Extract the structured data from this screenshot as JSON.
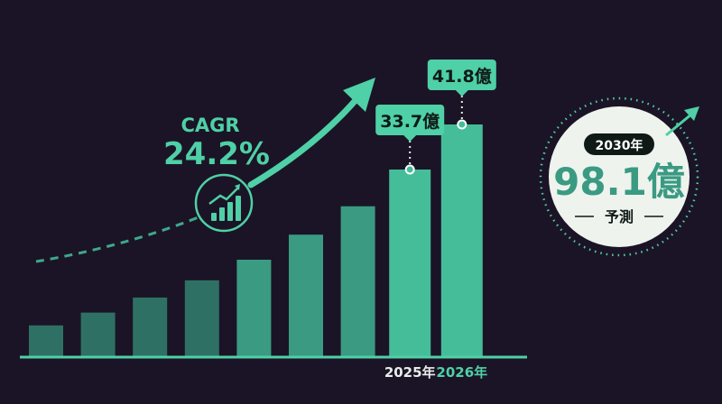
{
  "colors": {
    "background": "#1b1426",
    "bar_dark": "#2f7064",
    "bar_mid": "#3a9a82",
    "bar_highlight": "#45bd98",
    "accent": "#4fd0a6",
    "label_text": "#0f1a16",
    "callout_bg": "#eef3ee"
  },
  "cagr": {
    "label": "CAGR",
    "value": "24.2%"
  },
  "callout": {
    "year": "2030年",
    "value": "98.1億",
    "caption": "予測"
  },
  "chart_data": {
    "type": "bar",
    "categories": [
      "",
      "",
      "",
      "",
      "",
      "",
      "",
      "2025年",
      "2026年"
    ],
    "values": [
      5.7,
      8.0,
      10.7,
      13.8,
      17.5,
      22.0,
      27.1,
      33.7,
      41.8
    ],
    "data_labels": [
      "",
      "",
      "",
      "",
      "",
      "",
      "",
      "33.7億",
      "41.8億"
    ],
    "highlighted": [
      false,
      false,
      false,
      false,
      false,
      false,
      false,
      true,
      true
    ],
    "title": "",
    "xlabel": "",
    "ylabel": "",
    "ylim": [
      0,
      45
    ],
    "grid": false,
    "legend": "none",
    "icons": [
      "trend-up-icon",
      "bar-chart-icon"
    ]
  }
}
